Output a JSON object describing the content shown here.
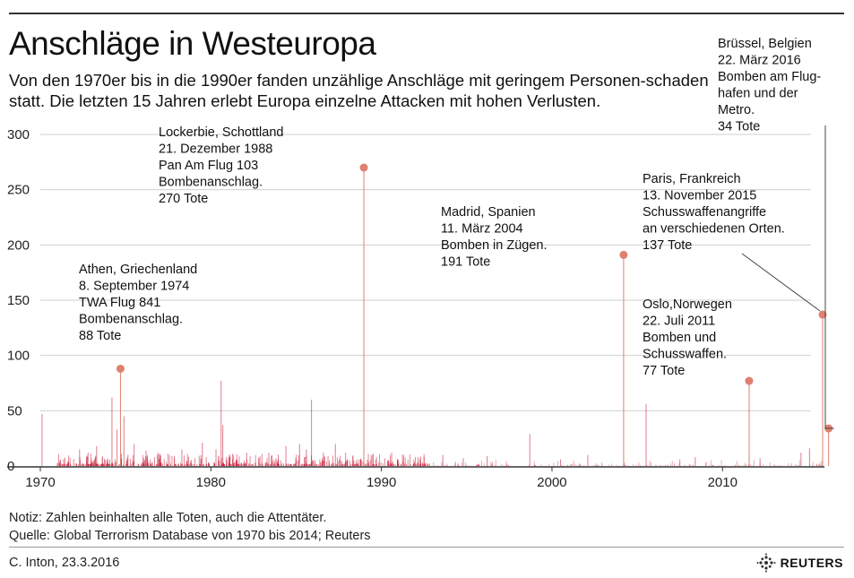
{
  "header": {
    "title": "Anschläge in Westeuropa",
    "subtitle": "Von den 1970er bis in die 1990er fanden unzählige Anschläge mit geringem Personen-schaden statt. Die letzten 15 Jahren erlebt Europa einzelne Attacken mit hohen Verlusten."
  },
  "footer": {
    "note": "Notiz: Zahlen beinhalten alle Toten, auch die Attentäter.",
    "source": "Quelle: Global Terrorism Database von 1970 bis 2014; Reuters",
    "author": "C. Inton, 23.3.2016",
    "logo": "REUTERS"
  },
  "colors": {
    "stem": "#c8102e",
    "marker": "#e0806e",
    "grid": "#cfcfcf",
    "axis": "#333333"
  },
  "chart_data": {
    "type": "bar",
    "title": "Anschläge in Westeuropa",
    "xlim": [
      1970,
      2016.5
    ],
    "ylim": [
      0,
      300
    ],
    "x_ticks": [
      1970,
      1980,
      1990,
      2000,
      2010
    ],
    "y_ticks": [
      0,
      50,
      100,
      150,
      200,
      250,
      300
    ],
    "grid": true,
    "highlighted_attacks": [
      {
        "x": 1974.7,
        "value": 88,
        "lines": [
          "Athen, Griechenland",
          "8. September 1974",
          "TWA Flug 841",
          "Bombenanschlag.",
          "88 Tote"
        ]
      },
      {
        "x": 1988.97,
        "value": 270,
        "lines": [
          "Lockerbie, Schottland",
          "21. Dezember 1988",
          "Pan Am Flug 103",
          "Bombenanschlag.",
          "270 Tote"
        ]
      },
      {
        "x": 2004.2,
        "value": 191,
        "lines": [
          "Madrid, Spanien",
          "11. März 2004",
          "Bomben in Zügen.",
          "191 Tote"
        ]
      },
      {
        "x": 2011.56,
        "value": 77,
        "lines": [
          "Oslo,Norwegen",
          "22. Juli 2011",
          "Bomben und",
          "Schusswaffen.",
          "77 Tote"
        ]
      },
      {
        "x": 2015.87,
        "value": 137,
        "lines": [
          "Paris, Frankreich",
          "13. November 2015",
          "Schusswaffenangriffe",
          "an verschiedenen Orten.",
          "137 Tote"
        ]
      },
      {
        "x": 2016.22,
        "value": 34,
        "lines": [
          "Brüssel, Belgien",
          "22. März 2016",
          "Bomben am Flug-",
          "hafen und der",
          "Metro.",
          "34 Tote"
        ]
      }
    ],
    "other_attacks": [
      {
        "x": 1970.1,
        "value": 47
      },
      {
        "x": 1972.3,
        "value": 15
      },
      {
        "x": 1972.8,
        "value": 12
      },
      {
        "x": 1973.3,
        "value": 18
      },
      {
        "x": 1974.2,
        "value": 62
      },
      {
        "x": 1974.5,
        "value": 33
      },
      {
        "x": 1974.9,
        "value": 45
      },
      {
        "x": 1975.5,
        "value": 20
      },
      {
        "x": 1976.2,
        "value": 14
      },
      {
        "x": 1976.9,
        "value": 12
      },
      {
        "x": 1978.3,
        "value": 15
      },
      {
        "x": 1979.5,
        "value": 21
      },
      {
        "x": 1980.3,
        "value": 15
      },
      {
        "x": 1980.6,
        "value": 77
      },
      {
        "x": 1980.7,
        "value": 37
      },
      {
        "x": 1982.1,
        "value": 12
      },
      {
        "x": 1983.4,
        "value": 12
      },
      {
        "x": 1984.4,
        "value": 18
      },
      {
        "x": 1985.2,
        "value": 20
      },
      {
        "x": 1985.6,
        "value": 15
      },
      {
        "x": 1985.9,
        "value": 60
      },
      {
        "x": 1986.6,
        "value": 12
      },
      {
        "x": 1987.3,
        "value": 20
      },
      {
        "x": 1987.9,
        "value": 12
      },
      {
        "x": 1989.4,
        "value": 10
      },
      {
        "x": 1990.6,
        "value": 12
      },
      {
        "x": 1991.3,
        "value": 10
      },
      {
        "x": 1992.5,
        "value": 8
      },
      {
        "x": 1993.6,
        "value": 10
      },
      {
        "x": 1994.8,
        "value": 7
      },
      {
        "x": 1996.2,
        "value": 9
      },
      {
        "x": 1998.7,
        "value": 29
      },
      {
        "x": 2000.5,
        "value": 6
      },
      {
        "x": 2002.1,
        "value": 10
      },
      {
        "x": 2005.52,
        "value": 56
      },
      {
        "x": 2007.5,
        "value": 6
      },
      {
        "x": 2008.4,
        "value": 8
      },
      {
        "x": 2012.2,
        "value": 7
      },
      {
        "x": 2014.6,
        "value": 12
      },
      {
        "x": 2015.1,
        "value": 16
      }
    ]
  }
}
